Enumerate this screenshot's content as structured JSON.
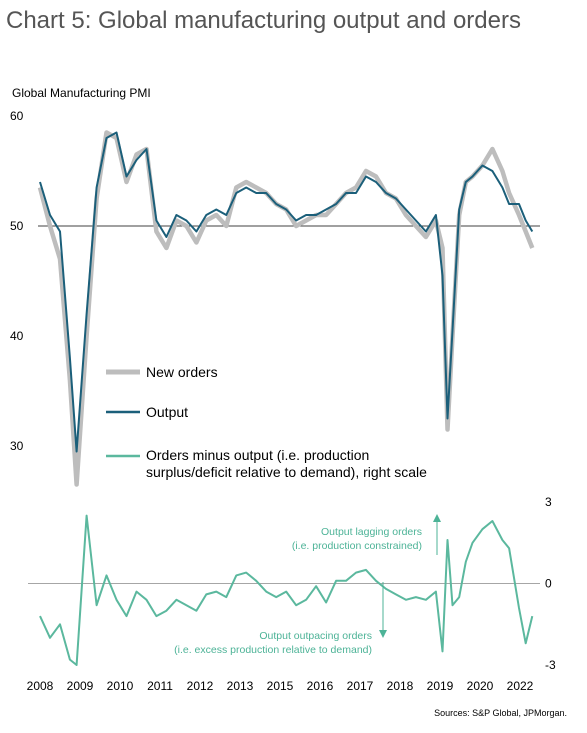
{
  "header": {
    "title": "Chart 5: Global manufacturing output and orders",
    "left_axis_label": "Global Manufacturing PMI",
    "source": "Sources: S&P Global, JPMorgan."
  },
  "colors": {
    "new_orders": "#bdbdbd",
    "output": "#1b5f7a",
    "diff": "#5bb89e",
    "annotation": "#4db397"
  },
  "chart_data": {
    "type": "line",
    "x_ticks": [
      "2008",
      "2009",
      "2010",
      "2011",
      "2012",
      "2013",
      "2015",
      "2016",
      "2017",
      "2018",
      "2019",
      "2020",
      "2022"
    ],
    "left_axis": {
      "ylim": [
        29,
        60
      ],
      "ticks": [
        30,
        40,
        50,
        60
      ],
      "tick_labels": [
        "30",
        "40",
        "50",
        "60"
      ]
    },
    "right_axis": {
      "ylim": [
        -3,
        3
      ],
      "ticks": [
        -3,
        0,
        3
      ],
      "tick_labels": [
        "-3",
        "0",
        "3"
      ]
    },
    "legend": {
      "new_orders": "New orders",
      "output": "Output",
      "diff_line1": "Orders minus output (i.e. production",
      "diff_line2": "surplus/deficit relative to demand), right scale"
    },
    "annotations": {
      "up_line1": "Output lagging orders",
      "up_line2": "(i.e. production constrained)",
      "down_line1": "Output outpacing orders",
      "down_line2": "(i.e. excess production relative to demand)"
    },
    "series": [
      {
        "name": "New orders",
        "x": [
          2008.0,
          2008.3,
          2008.6,
          2008.9,
          2009.1,
          2009.4,
          2009.7,
          2010.0,
          2010.3,
          2010.6,
          2010.9,
          2011.2,
          2011.5,
          2011.8,
          2012.1,
          2012.4,
          2012.7,
          2013.0,
          2013.3,
          2013.6,
          2013.9,
          2014.2,
          2014.5,
          2014.8,
          2015.1,
          2015.4,
          2015.7,
          2016.0,
          2016.3,
          2016.6,
          2016.9,
          2017.2,
          2017.5,
          2017.8,
          2018.1,
          2018.4,
          2018.7,
          2019.0,
          2019.3,
          2019.6,
          2019.9,
          2020.1,
          2020.25,
          2020.4,
          2020.6,
          2020.8,
          2021.0,
          2021.3,
          2021.6,
          2021.9,
          2022.1,
          2022.4,
          2022.6,
          2022.8
        ],
        "values": [
          53.5,
          50.0,
          47.0,
          36.0,
          26.5,
          40.0,
          52.5,
          58.5,
          58.0,
          54.0,
          56.5,
          57.0,
          49.5,
          48.0,
          50.5,
          50.0,
          48.5,
          50.5,
          51.0,
          50.0,
          53.5,
          54.0,
          53.5,
          53.0,
          52.0,
          51.5,
          50.0,
          50.5,
          51.0,
          51.0,
          52.0,
          53.0,
          53.5,
          55.0,
          54.5,
          53.0,
          52.5,
          51.0,
          50.0,
          49.0,
          50.5,
          48.0,
          31.5,
          40.0,
          51.0,
          54.0,
          54.5,
          55.5,
          57.0,
          55.0,
          53.0,
          51.0,
          49.5,
          48.0
        ]
      },
      {
        "name": "Output",
        "x": [
          2008.0,
          2008.3,
          2008.6,
          2008.9,
          2009.1,
          2009.4,
          2009.7,
          2010.0,
          2010.3,
          2010.6,
          2010.9,
          2011.2,
          2011.5,
          2011.8,
          2012.1,
          2012.4,
          2012.7,
          2013.0,
          2013.3,
          2013.6,
          2013.9,
          2014.2,
          2014.5,
          2014.8,
          2015.1,
          2015.4,
          2015.7,
          2016.0,
          2016.3,
          2016.6,
          2016.9,
          2017.2,
          2017.5,
          2017.8,
          2018.1,
          2018.4,
          2018.7,
          2019.0,
          2019.3,
          2019.6,
          2019.9,
          2020.1,
          2020.25,
          2020.4,
          2020.6,
          2020.8,
          2021.0,
          2021.3,
          2021.6,
          2021.9,
          2022.1,
          2022.4,
          2022.6,
          2022.8
        ],
        "values": [
          54.0,
          51.0,
          49.5,
          38.0,
          29.5,
          42.0,
          53.5,
          58.0,
          58.5,
          54.5,
          56.0,
          57.0,
          50.5,
          49.0,
          51.0,
          50.5,
          49.5,
          51.0,
          51.5,
          51.0,
          53.0,
          53.5,
          53.0,
          53.0,
          52.0,
          51.5,
          50.5,
          51.0,
          51.0,
          51.5,
          52.0,
          53.0,
          53.0,
          54.5,
          54.0,
          53.0,
          52.5,
          51.5,
          50.5,
          49.5,
          51.0,
          45.5,
          32.5,
          40.5,
          51.5,
          54.0,
          54.5,
          55.5,
          55.0,
          53.5,
          52.0,
          52.0,
          50.5,
          49.5
        ]
      },
      {
        "name": "Orders minus output (i.e. production surplus/deficit relative to demand), right scale",
        "x": [
          2008.0,
          2008.3,
          2008.6,
          2008.9,
          2009.1,
          2009.4,
          2009.7,
          2010.0,
          2010.3,
          2010.6,
          2010.9,
          2011.2,
          2011.5,
          2011.8,
          2012.1,
          2012.4,
          2012.7,
          2013.0,
          2013.3,
          2013.6,
          2013.9,
          2014.2,
          2014.5,
          2014.8,
          2015.1,
          2015.4,
          2015.7,
          2016.0,
          2016.3,
          2016.6,
          2016.9,
          2017.2,
          2017.5,
          2017.8,
          2018.1,
          2018.4,
          2018.7,
          2019.0,
          2019.3,
          2019.6,
          2019.9,
          2020.1,
          2020.25,
          2020.4,
          2020.6,
          2020.8,
          2021.0,
          2021.3,
          2021.6,
          2021.9,
          2022.1,
          2022.4,
          2022.6,
          2022.8
        ],
        "values": [
          -1.2,
          -2.0,
          -1.5,
          -2.8,
          -3.0,
          2.5,
          -0.8,
          0.3,
          -0.6,
          -1.2,
          -0.3,
          -0.6,
          -1.2,
          -1.0,
          -0.6,
          -0.8,
          -1.0,
          -0.4,
          -0.3,
          -0.5,
          0.3,
          0.4,
          0.1,
          -0.3,
          -0.5,
          -0.3,
          -0.8,
          -0.6,
          -0.1,
          -0.7,
          0.1,
          0.1,
          0.4,
          0.5,
          0.1,
          -0.2,
          -0.4,
          -0.6,
          -0.5,
          -0.6,
          -0.3,
          -2.5,
          1.6,
          -0.8,
          -0.5,
          0.8,
          1.5,
          2.0,
          2.3,
          1.6,
          1.3,
          -0.9,
          -2.2,
          -1.2
        ]
      }
    ]
  }
}
